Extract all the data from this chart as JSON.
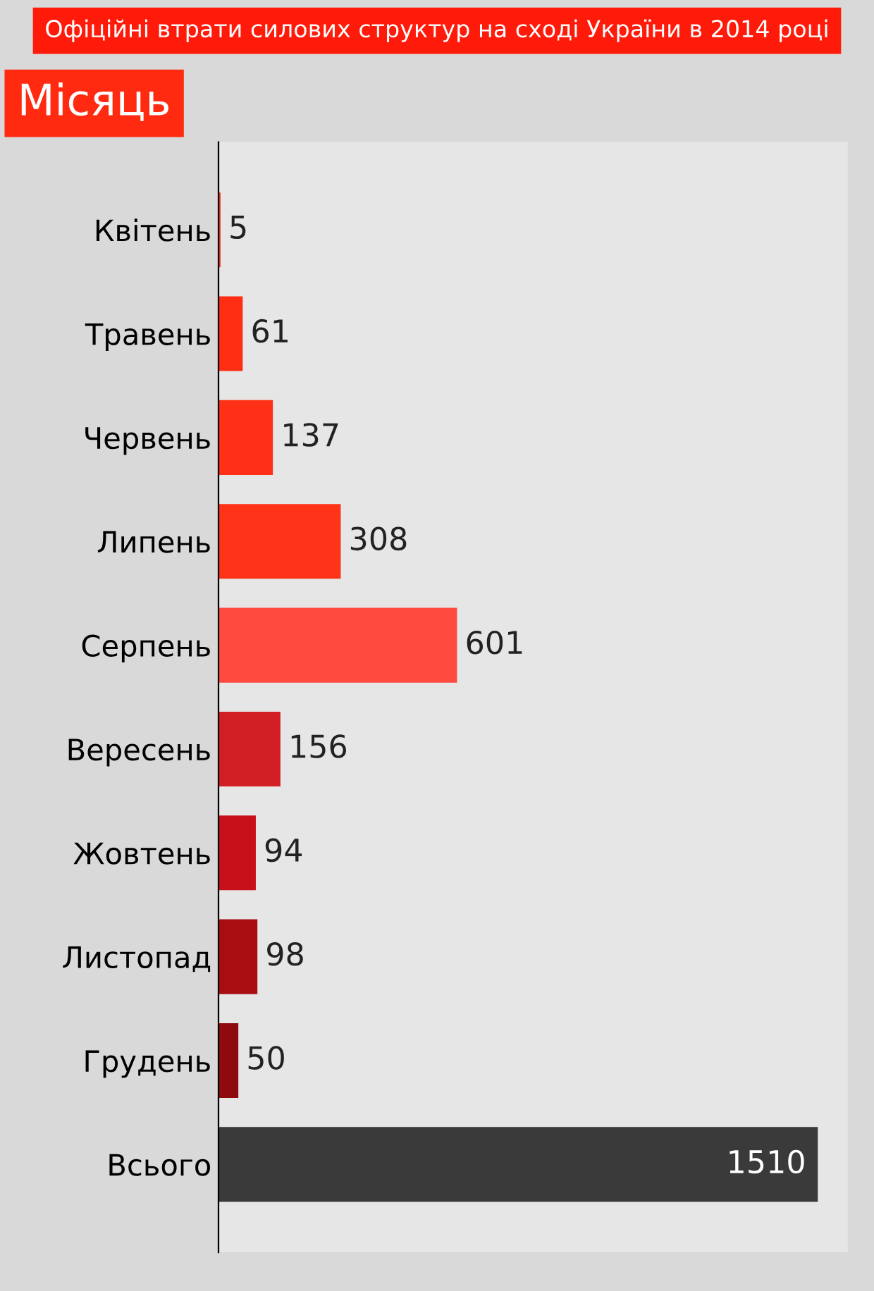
{
  "chart_data": {
    "type": "bar",
    "orientation": "horizontal",
    "title": "Офіційні втрати силових структур на сході України в 2014 році",
    "ylabel": "Місяць",
    "categories": [
      "Квітень",
      "Травень",
      "Червень",
      "Липень",
      "Серпень",
      "Вересень",
      "Жовтень",
      "Листопад",
      "Грудень",
      "Всього"
    ],
    "values": [
      5,
      61,
      137,
      308,
      601,
      156,
      94,
      98,
      50,
      1510
    ],
    "colors": [
      "#ff2a10",
      "#ff2d12",
      "#ff3015",
      "#ff3318",
      "#ff4a3f",
      "#d21f26",
      "#c8101a",
      "#a80d12",
      "#8e0a0e",
      "#3a3a3a"
    ],
    "data_labels": true,
    "tick_labels": "y",
    "grid": false,
    "legend": false
  }
}
